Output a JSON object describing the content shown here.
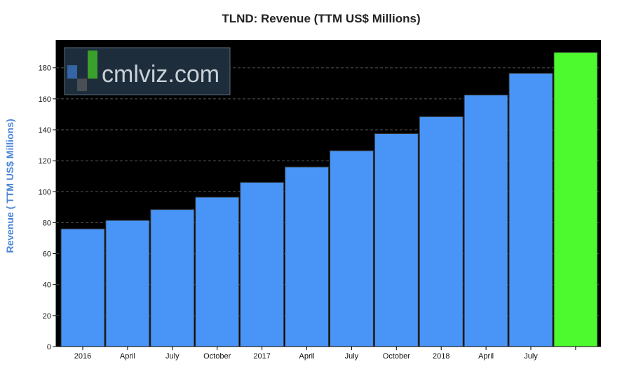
{
  "chart_data": {
    "type": "bar",
    "title": "TLND: Revenue (TTM US$ Millions)",
    "xlabel": "",
    "ylabel": "Revenue ( TTM US$ Millions)",
    "ylim": [
      0,
      198
    ],
    "yticks": [
      0,
      20,
      40,
      60,
      80,
      100,
      120,
      140,
      160,
      180
    ],
    "categories": [
      "2016",
      "April",
      "July",
      "October",
      "2017",
      "April",
      "July",
      "October",
      "2018",
      "April",
      "July",
      ""
    ],
    "values": [
      76,
      81.5,
      88.5,
      96.5,
      106,
      116,
      126.5,
      137.5,
      148.5,
      162.5,
      176.5,
      190
    ],
    "grid": "horizontal dashed",
    "legend": "none"
  },
  "colors": {
    "bar": "#4895f7",
    "last_bar": "#4cfa2e",
    "plot_background": "#000000",
    "grid": "#555555",
    "ylabel": "#4a86d6",
    "title": "#222222"
  },
  "watermark": {
    "text": "cmlviz.com"
  }
}
